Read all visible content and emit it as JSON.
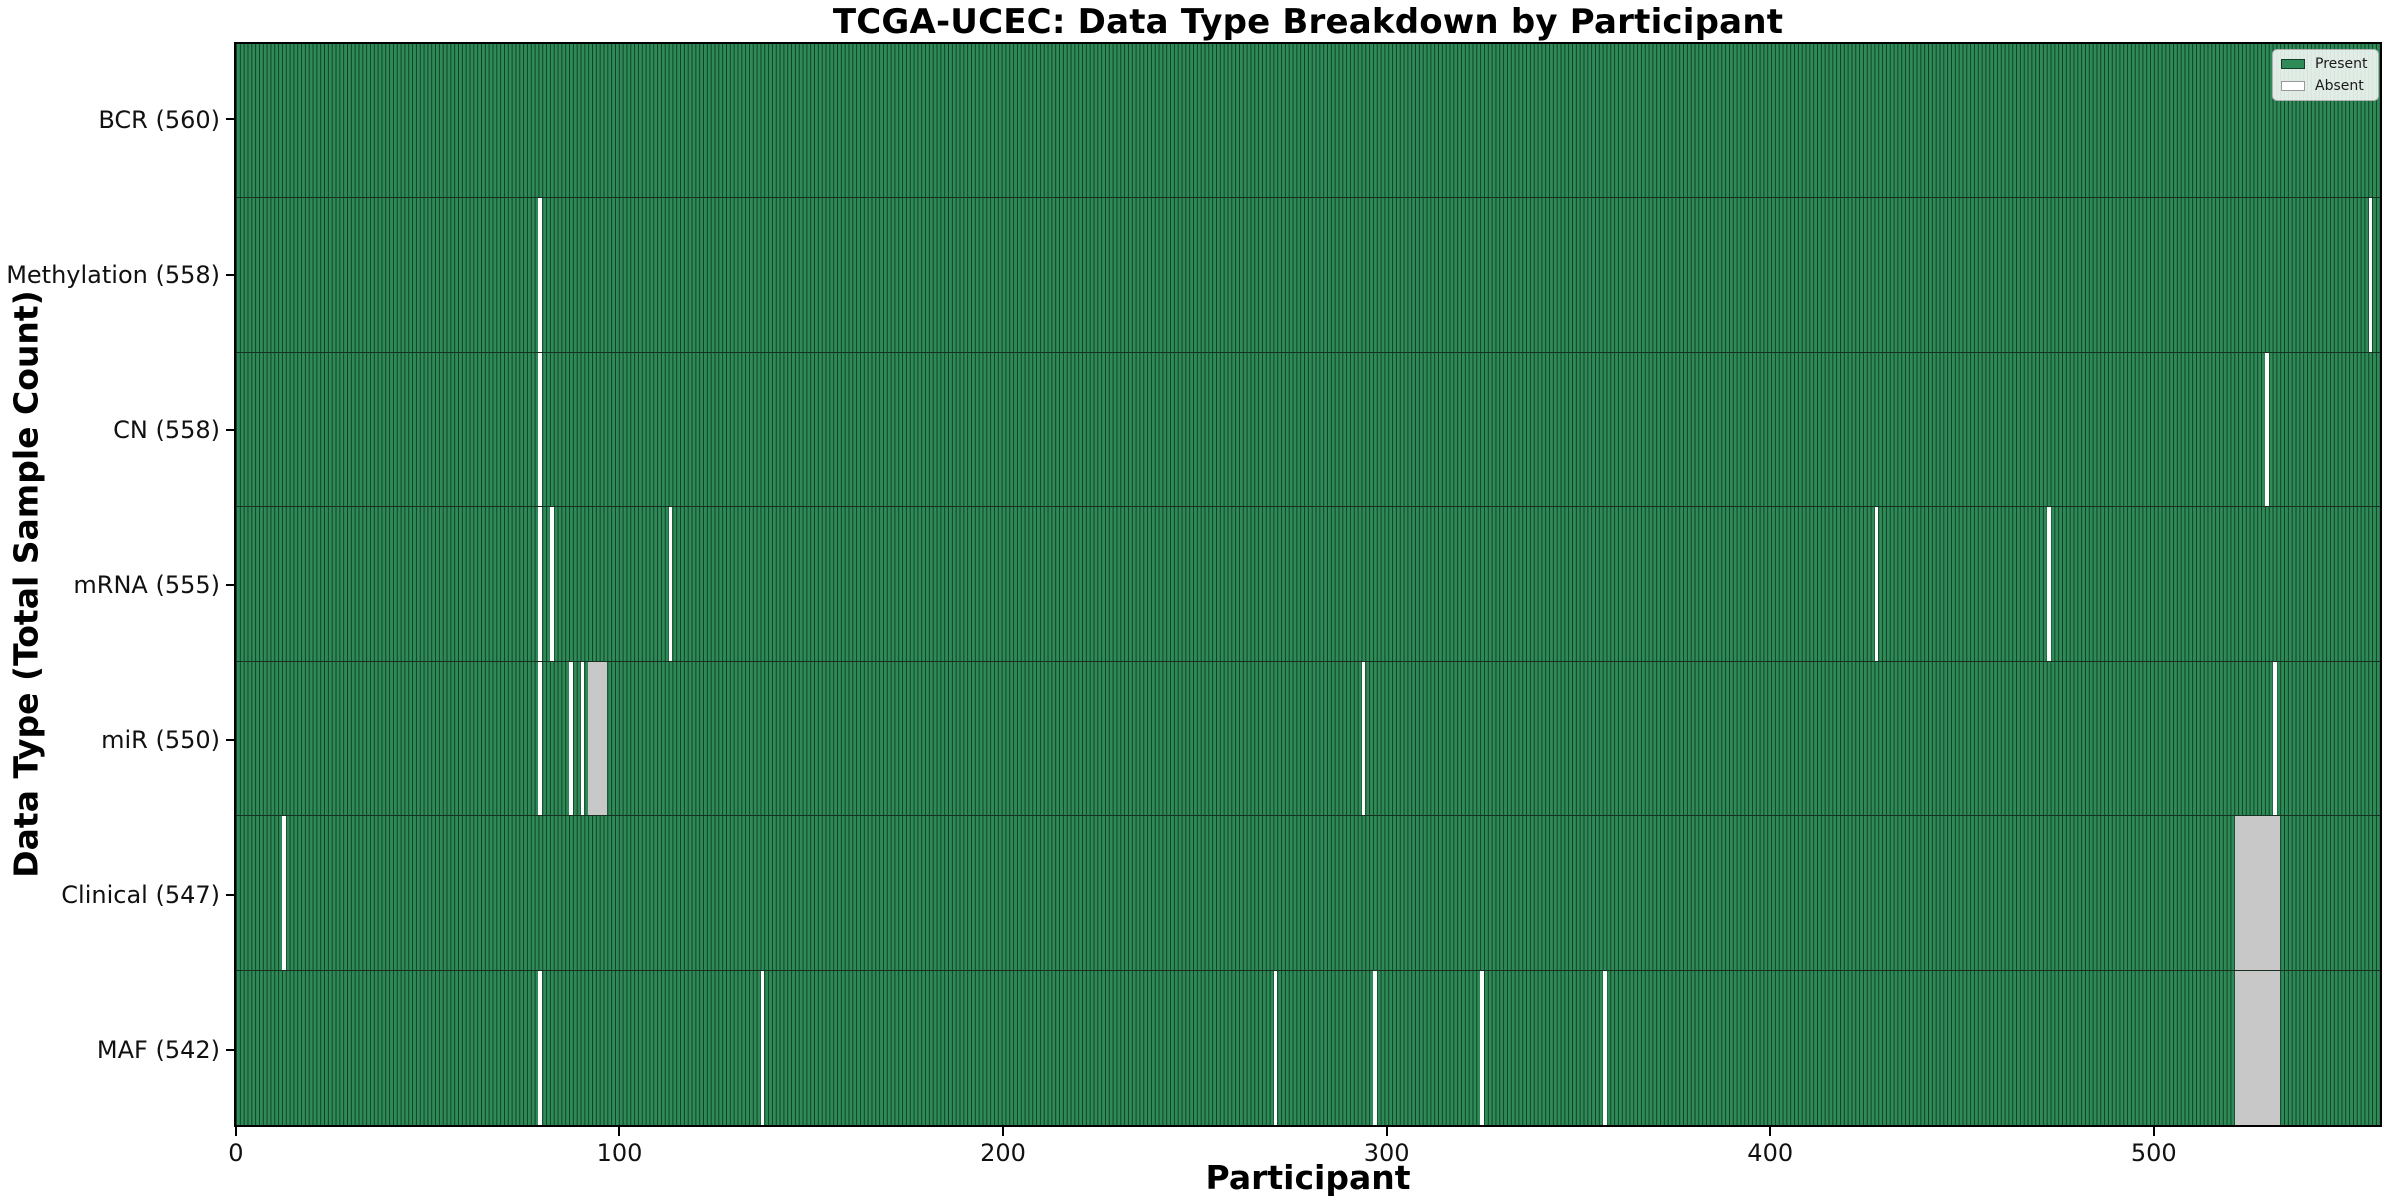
{
  "chart_data": {
    "type": "heatmap",
    "title": "TCGA-UCEC: Data Type Breakdown by Participant",
    "xlabel": "Participant",
    "ylabel": "Data Type (Total Sample Count)",
    "n_participants": 560,
    "xlim": [
      -0.5,
      559.5
    ],
    "x_ticks": [
      0,
      100,
      200,
      300,
      400,
      500
    ],
    "grid": false,
    "legend_position": "upper right",
    "states": {
      "present": "Present",
      "absent": "Absent"
    },
    "rows": [
      {
        "id": "bcr",
        "data_type": "BCR",
        "label": "BCR (560)",
        "present_count": 560,
        "absent_count": 0,
        "absent_runs": []
      },
      {
        "id": "methylation",
        "data_type": "Methylation",
        "label": "Methylation (558)",
        "present_count": 558,
        "absent_count": 2,
        "absent_runs": [
          {
            "start": 79,
            "count": 1
          },
          {
            "start": 557,
            "count": 1
          }
        ]
      },
      {
        "id": "cn",
        "data_type": "CN",
        "label": "CN (558)",
        "present_count": 558,
        "absent_count": 2,
        "absent_runs": [
          {
            "start": 79,
            "count": 1
          },
          {
            "start": 530,
            "count": 1
          }
        ]
      },
      {
        "id": "mrna",
        "data_type": "mRNA",
        "label": "mRNA (555)",
        "present_count": 555,
        "absent_count": 5,
        "absent_runs": [
          {
            "start": 79,
            "count": 1
          },
          {
            "start": 82,
            "count": 1
          },
          {
            "start": 113,
            "count": 1
          },
          {
            "start": 428,
            "count": 1
          },
          {
            "start": 473,
            "count": 1
          }
        ]
      },
      {
        "id": "mir",
        "data_type": "miR",
        "label": "miR (550)",
        "present_count": 550,
        "absent_count": 10,
        "absent_runs": [
          {
            "start": 79,
            "count": 1
          },
          {
            "start": 87,
            "count": 1
          },
          {
            "start": 90,
            "count": 1
          },
          {
            "start": 92,
            "count": 5
          },
          {
            "start": 294,
            "count": 1
          },
          {
            "start": 532,
            "count": 1
          }
        ]
      },
      {
        "id": "clinical",
        "data_type": "Clinical",
        "label": "Clinical (547)",
        "present_count": 547,
        "absent_count": 13,
        "absent_runs": [
          {
            "start": 12,
            "count": 1
          },
          {
            "start": 522,
            "count": 12
          }
        ]
      },
      {
        "id": "maf",
        "data_type": "MAF",
        "label": "MAF (542)",
        "present_count": 542,
        "absent_count": 18,
        "absent_runs": [
          {
            "start": 79,
            "count": 1
          },
          {
            "start": 137,
            "count": 1
          },
          {
            "start": 271,
            "count": 1
          },
          {
            "start": 297,
            "count": 1
          },
          {
            "start": 325,
            "count": 1
          },
          {
            "start": 357,
            "count": 1
          },
          {
            "start": 522,
            "count": 12
          }
        ]
      }
    ],
    "colors": {
      "present": "#2e8b57",
      "present_edge": "#123d26",
      "absent": "#ffffff",
      "absent_edge": "#c8c8c8",
      "row_separator": "#17301f",
      "plot_border": "#000000",
      "legend_border": "#b0b0b0"
    }
  }
}
